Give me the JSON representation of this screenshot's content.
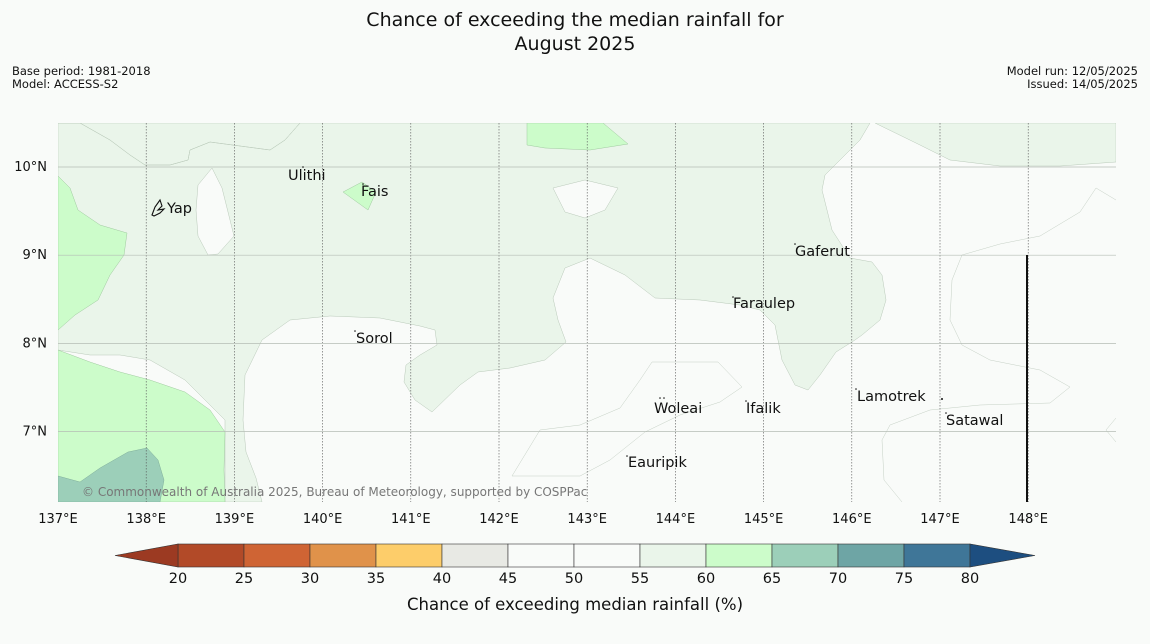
{
  "title": {
    "line1": "Chance of exceeding the median rainfall for",
    "line2": "August 2025"
  },
  "meta_left": {
    "base_period": "Base period: 1981-2018",
    "model": "Model: ACCESS-S2"
  },
  "meta_right": {
    "model_run": "Model run: 12/05/2025",
    "issued": "Issued: 14/05/2025"
  },
  "axes": {
    "lon_labels": [
      "137°E",
      "138°E",
      "139°E",
      "140°E",
      "141°E",
      "142°E",
      "143°E",
      "144°E",
      "145°E",
      "146°E",
      "147°E",
      "148°E"
    ],
    "lat_labels": [
      "10°N",
      "9°N",
      "8°N",
      "7°N"
    ]
  },
  "places": {
    "ulithi": "Ulithi",
    "fais": "Fais",
    "yap": "Yap",
    "gaferut": "Gaferut",
    "faraulep": "Faraulep",
    "sorol": "Sorol",
    "lamotrek": "Lamotrek",
    "woleai": "Woleai",
    "ifalik": "Ifalik",
    "satawal": "Satawal",
    "eauripik": "Eauripik"
  },
  "copyright": "© Commonwealth of Australia 2025, Bureau of Meteorology, supported by COSPPac",
  "colorbar": {
    "label": "Chance of exceeding median rainfall (%)",
    "ticks": [
      "20",
      "25",
      "30",
      "35",
      "40",
      "45",
      "50",
      "55",
      "60",
      "65",
      "70",
      "75",
      "80"
    ],
    "colors": [
      "#b24a28",
      "#cf6434",
      "#e0924a",
      "#fdcd6a",
      "#e8e9e4",
      "#f9fbf9",
      "#f9fbf9",
      "#eaf5ea",
      "#ccfcca",
      "#9ccfb9",
      "#6ea5a5",
      "#3f7698"
    ],
    "low_color": "#9c3a22",
    "high_color": "#1d4e80"
  }
}
